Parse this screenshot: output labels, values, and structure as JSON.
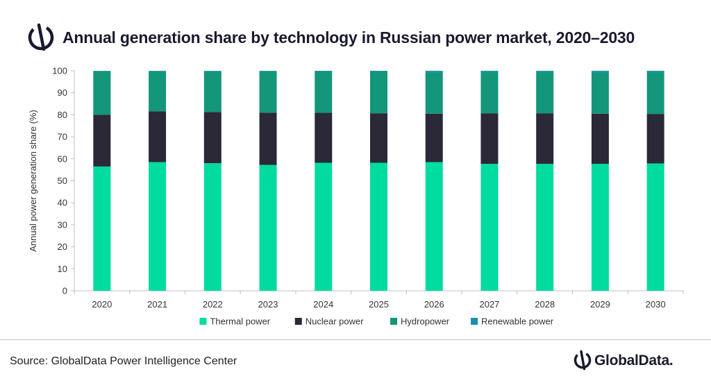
{
  "header": {
    "title": "Annual generation share by technology in Russian power market, 2020–2030",
    "logo_icon": "globaldata-logo-icon"
  },
  "colors": {
    "thermal": "#00dba0",
    "nuclear": "#2b2838",
    "hydro": "#13967a",
    "renewable": "#1890a8",
    "brand_dark": "#1a1a2e"
  },
  "chart_data": {
    "type": "bar",
    "stacked": true,
    "categories": [
      "2020",
      "2021",
      "2022",
      "2023",
      "2024",
      "2025",
      "2026",
      "2027",
      "2028",
      "2029",
      "2030"
    ],
    "series": [
      {
        "name": "Thermal power",
        "color": "#00dba0",
        "values": [
          56.5,
          58.5,
          58.0,
          57.2,
          58.2,
          58.2,
          58.5,
          57.7,
          57.7,
          57.7,
          57.9
        ]
      },
      {
        "name": "Nuclear power",
        "color": "#2b2838",
        "values": [
          23.5,
          23.1,
          23.3,
          23.8,
          22.7,
          22.5,
          22.0,
          23.0,
          23.0,
          22.8,
          22.5
        ]
      },
      {
        "name": "Hydropower",
        "color": "#13967a",
        "values": [
          19.9,
          18.3,
          18.6,
          18.9,
          18.8,
          19.0,
          19.1,
          18.8,
          18.8,
          18.9,
          19.0
        ]
      },
      {
        "name": "Renewable power",
        "color": "#1890a8",
        "values": [
          0.1,
          0.1,
          0.1,
          0.1,
          0.3,
          0.3,
          0.4,
          0.5,
          0.5,
          0.6,
          0.6
        ]
      }
    ],
    "ylabel": "Annual power generation share (%)",
    "ylim": [
      0,
      100
    ],
    "yticks": [
      "0",
      "10",
      "20",
      "30",
      "40",
      "50",
      "60",
      "70",
      "80",
      "90",
      "100"
    ],
    "legend_position": "bottom",
    "grid": false
  },
  "footer": {
    "source": "Source: GlobalData Power Intelligence Center",
    "brand": "GlobalData."
  }
}
